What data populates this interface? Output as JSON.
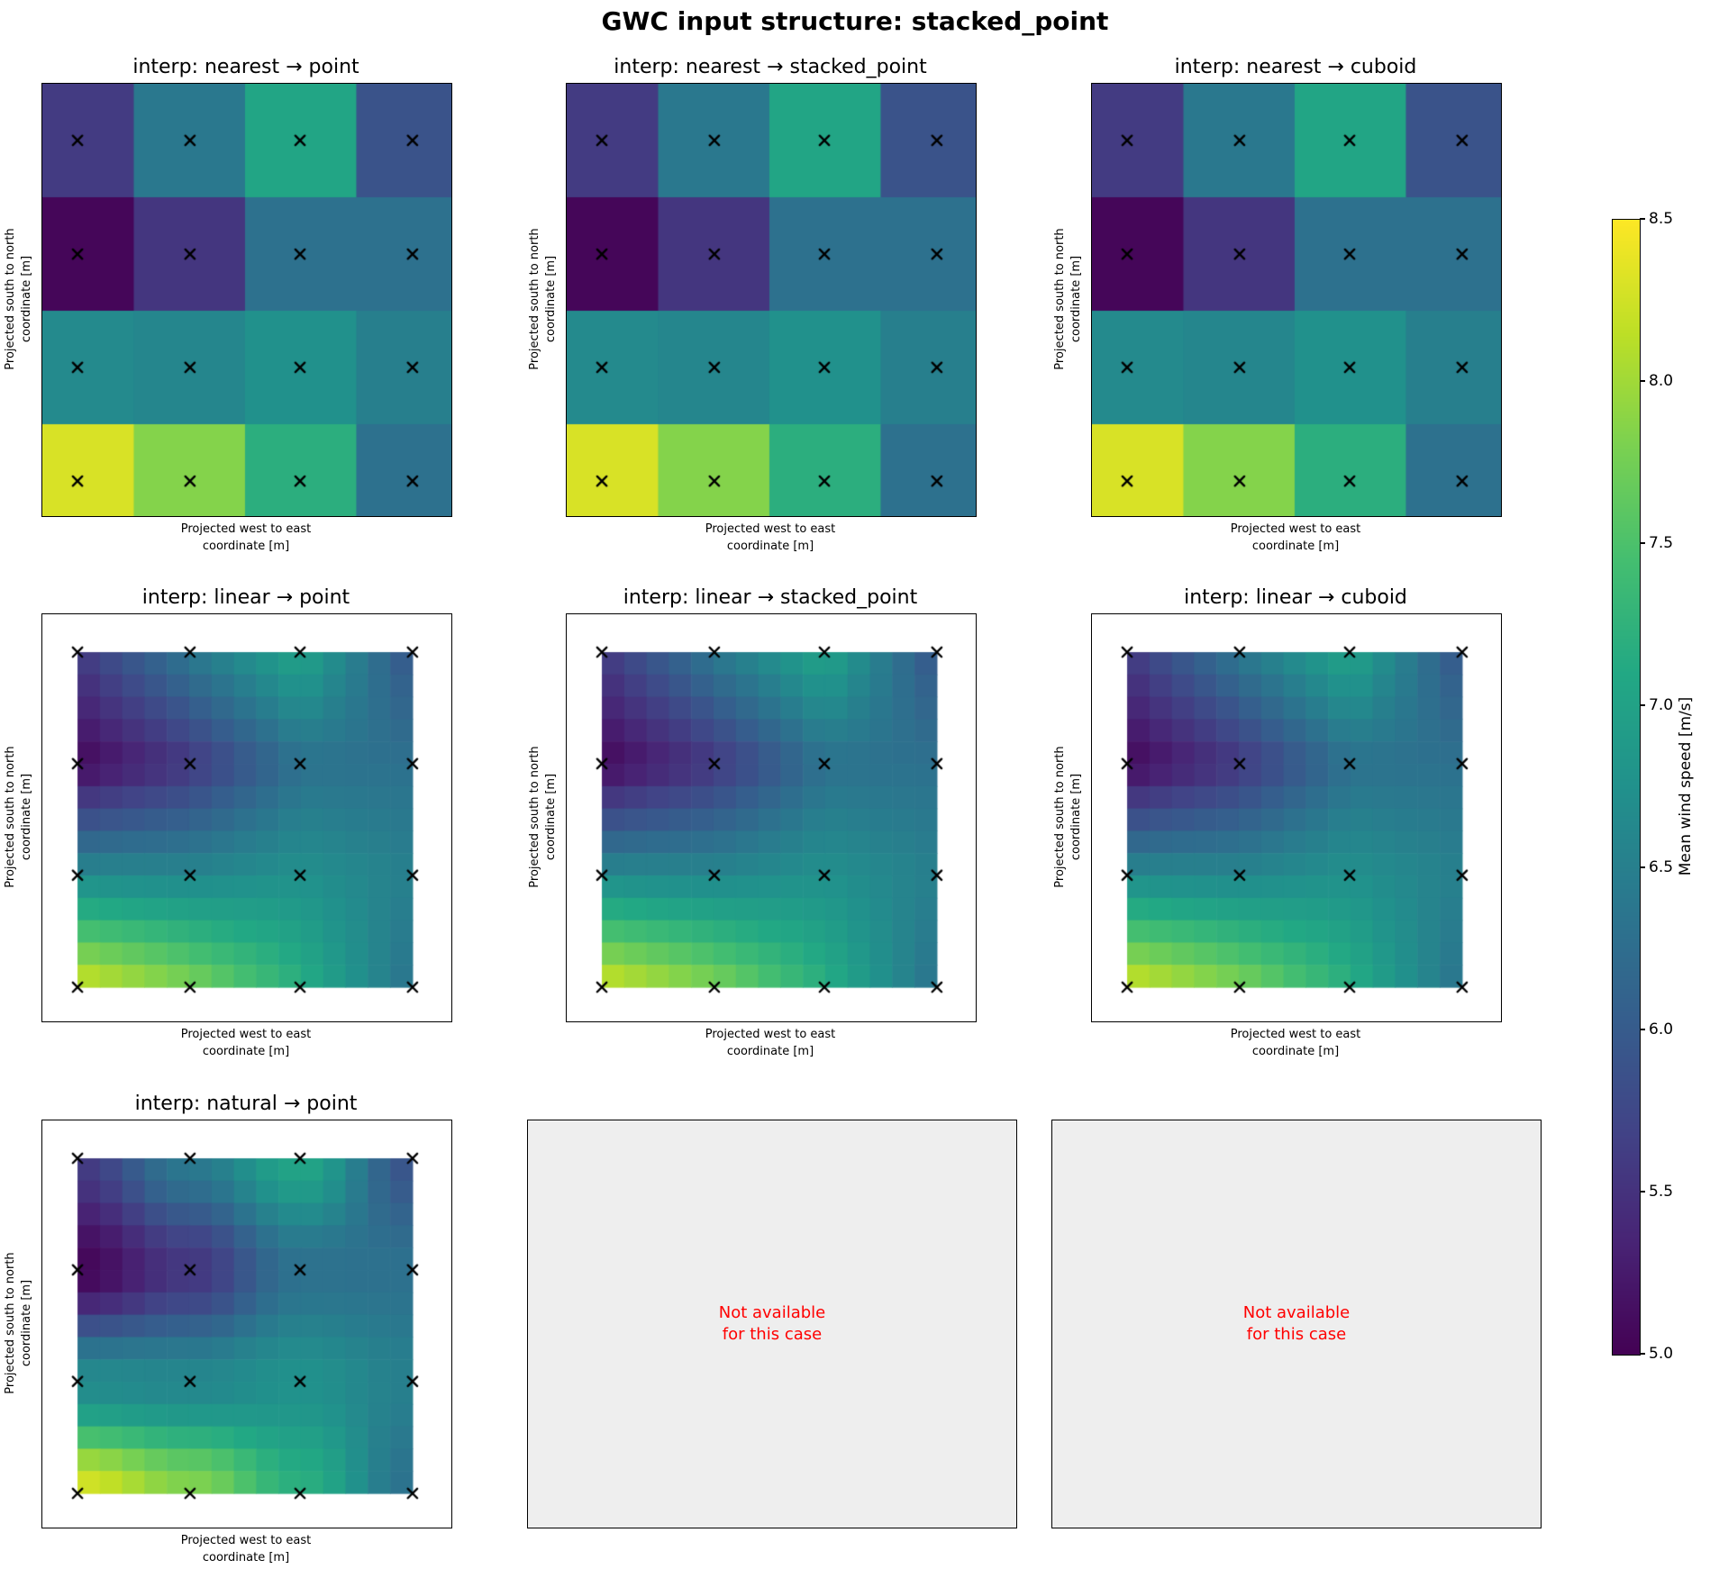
{
  "figure": {
    "title": "GWC input structure: stacked_point",
    "background": "#ffffff"
  },
  "axes_labels": {
    "x_line1": "Projected west to east",
    "x_line2": "coordinate [m]",
    "y_line1": "Projected south to north",
    "y_line2": "coordinate [m]"
  },
  "not_available": {
    "line1": "Not available",
    "line2": "for this case",
    "text_color": "#ff0000",
    "bg_color": "#eeeeee"
  },
  "colorbar": {
    "label": "Mean wind speed [m/s]",
    "tick_labels": [
      "8.5",
      "8.0",
      "7.5",
      "7.0",
      "6.5",
      "6.0",
      "5.5",
      "5.0"
    ],
    "tick_values": [
      8.5,
      8.0,
      7.5,
      7.0,
      6.5,
      6.0,
      5.5,
      5.0
    ],
    "vmin": 5.0,
    "vmax": 8.5,
    "colormap": "viridis"
  },
  "chart_data": {
    "type": "heatmap",
    "title": "GWC input structure: stacked_point",
    "colorbar_label": "Mean wind speed [m/s]",
    "colormap": "viridis",
    "vmin": 5.0,
    "vmax": 8.5,
    "marker": "x",
    "marker_color": "#000000",
    "grid_shape": [
      4,
      4
    ],
    "sample_values_mps": [
      [
        5.6,
        6.4,
        7.05,
        5.9
      ],
      [
        5.05,
        5.55,
        6.3,
        6.3
      ],
      [
        6.65,
        6.6,
        6.75,
        6.5
      ],
      [
        8.3,
        7.85,
        7.2,
        6.3
      ]
    ],
    "panels": [
      {
        "title": "interp: nearest → point",
        "interp": "nearest",
        "structure": "point",
        "kind": "coarse"
      },
      {
        "title": "interp: nearest → stacked_point",
        "interp": "nearest",
        "structure": "stacked_point",
        "kind": "coarse"
      },
      {
        "title": "interp: nearest → cuboid",
        "interp": "nearest",
        "structure": "cuboid",
        "kind": "coarse"
      },
      {
        "title": "interp: linear → point",
        "interp": "linear",
        "structure": "point",
        "kind": "fine"
      },
      {
        "title": "interp: linear → stacked_point",
        "interp": "linear",
        "structure": "stacked_point",
        "kind": "fine"
      },
      {
        "title": "interp: linear → cuboid",
        "interp": "linear",
        "structure": "cuboid",
        "kind": "fine"
      },
      {
        "title": "interp: natural → point",
        "interp": "natural",
        "structure": "point",
        "kind": "fine"
      },
      {
        "title": "",
        "interp": "natural",
        "structure": "stacked_point",
        "kind": "not-available"
      },
      {
        "title": "",
        "interp": "natural",
        "structure": "cuboid",
        "kind": "not-available"
      }
    ]
  }
}
